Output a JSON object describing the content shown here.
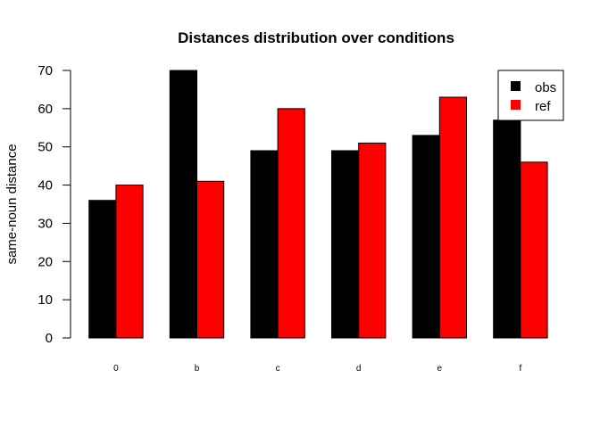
{
  "chart_data": {
    "type": "bar",
    "title": "Distances distribution over conditions",
    "xlabel": "",
    "ylabel": "same-noun distance",
    "categories": [
      "0",
      "b",
      "c",
      "d",
      "e",
      "f"
    ],
    "series": [
      {
        "name": "obs",
        "color": "#000000",
        "values": [
          36,
          70,
          49,
          49,
          53,
          57
        ]
      },
      {
        "name": "ref",
        "color": "#ff0000",
        "values": [
          40,
          41,
          60,
          51,
          63,
          46
        ]
      }
    ],
    "ylim": [
      0,
      70
    ],
    "yticks": [
      0,
      10,
      20,
      30,
      40,
      50,
      60,
      70
    ],
    "grid": false,
    "legend_position": "top-right"
  }
}
